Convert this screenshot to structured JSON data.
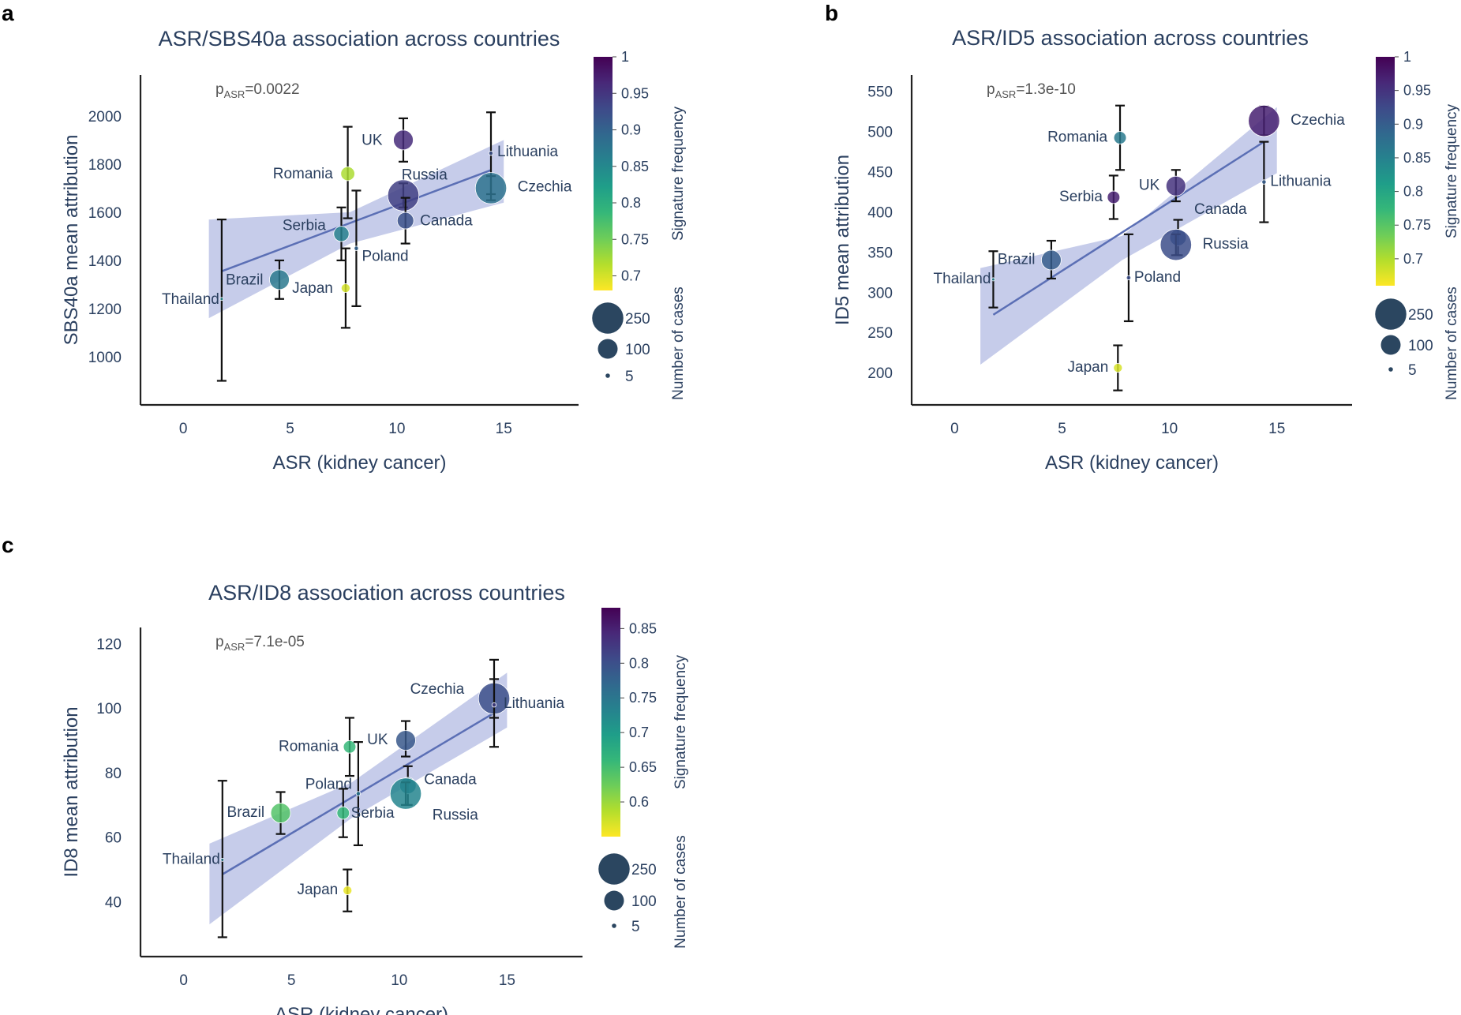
{
  "chart_data": [
    {
      "panel": "a",
      "type": "scatter",
      "title": "ASR/SBS40a association across countries",
      "xlabel": "ASR (kidney cancer)",
      "ylabel": "SBS40a mean attribution",
      "p_prefix": "p",
      "p_sub": "ASR",
      "p_value": "=0.0022",
      "xlim": [
        -2,
        18.5
      ],
      "ylim": [
        800,
        2170
      ],
      "xticks": [
        0,
        5,
        10,
        15
      ],
      "yticks": [
        1000,
        1200,
        1400,
        1600,
        1800,
        2000
      ],
      "points": [
        {
          "label": "UK",
          "x": 10.3,
          "y": 1900,
          "err": [
            1810,
            1990
          ],
          "n": 100,
          "freq": 0.96
        },
        {
          "label": "Lithuania",
          "x": 14.4,
          "y": 1845,
          "err": [
            1675,
            2015
          ],
          "n": 5,
          "freq": 0.92
        },
        {
          "label": "Romania",
          "x": 7.7,
          "y": 1760,
          "err": [
            1575,
            1955
          ],
          "n": 50,
          "freq": 0.72
        },
        {
          "label": "Russia",
          "x": 10.3,
          "y": 1670,
          "err": [
            1620,
            1720
          ],
          "n": 250,
          "freq": 0.94
        },
        {
          "label": "Czechia",
          "x": 14.4,
          "y": 1700,
          "err": [
            1650,
            1750
          ],
          "n": 250,
          "freq": 0.88
        },
        {
          "label": "Serbia",
          "x": 7.4,
          "y": 1510,
          "err": [
            1400,
            1620
          ],
          "n": 60,
          "freq": 0.86
        },
        {
          "label": "Canada",
          "x": 10.4,
          "y": 1565,
          "err": [
            1470,
            1660
          ],
          "n": 70,
          "freq": 0.92
        },
        {
          "label": "Poland",
          "x": 8.1,
          "y": 1450,
          "err": [
            1210,
            1690
          ],
          "n": 5,
          "freq": 0.9
        },
        {
          "label": "Brazil",
          "x": 4.5,
          "y": 1320,
          "err": [
            1240,
            1400
          ],
          "n": 100,
          "freq": 0.87
        },
        {
          "label": "Japan",
          "x": 7.6,
          "y": 1285,
          "err": [
            1120,
            1450
          ],
          "n": 20,
          "freq": 0.7
        },
        {
          "label": "Thailand",
          "x": 1.8,
          "y": 1240,
          "err": [
            900,
            1570
          ],
          "n": 2,
          "freq": 0.85
        }
      ],
      "fit": {
        "x0": 1.8,
        "y0": 1355,
        "x1": 14.4,
        "y1": 1775
      },
      "ci_upper": [
        [
          1.2,
          1570
        ],
        [
          7.8,
          1600
        ],
        [
          15.0,
          1900
        ]
      ],
      "ci_lower": [
        [
          1.2,
          1160
        ],
        [
          7.8,
          1470
        ],
        [
          15.0,
          1640
        ]
      ],
      "colorbar_label": "Signature frequency",
      "colorbar_range": [
        0.68,
        1.0
      ],
      "colorbar_ticks": [
        0.7,
        0.75,
        0.8,
        0.85,
        0.9,
        0.95,
        1
      ],
      "size_legend_label": "Number of cases",
      "size_legend": [
        250,
        100,
        5
      ]
    },
    {
      "panel": "b",
      "type": "scatter",
      "title": "ASR/ID5 association across countries",
      "xlabel": "ASR (kidney cancer)",
      "ylabel": "ID5 mean attribution",
      "p_prefix": "p",
      "p_sub": "ASR",
      "p_value": "=1.3e-10",
      "xlim": [
        -2,
        18.5
      ],
      "ylim": [
        160,
        570
      ],
      "xticks": [
        0,
        5,
        10,
        15
      ],
      "yticks": [
        200,
        250,
        300,
        350,
        400,
        450,
        500,
        550
      ],
      "points": [
        {
          "label": "Czechia",
          "x": 14.4,
          "y": 513,
          "err": [
            495,
            531
          ],
          "n": 250,
          "freq": 0.97
        },
        {
          "label": "Romania",
          "x": 7.7,
          "y": 492,
          "err": [
            452,
            532
          ],
          "n": 40,
          "freq": 0.86
        },
        {
          "label": "Lithuania",
          "x": 14.4,
          "y": 437,
          "err": [
            387,
            487
          ],
          "n": 5,
          "freq": 0.9
        },
        {
          "label": "UK",
          "x": 10.3,
          "y": 432,
          "err": [
            413,
            452
          ],
          "n": 100,
          "freq": 0.95
        },
        {
          "label": "Serbia",
          "x": 7.4,
          "y": 418,
          "err": [
            391,
            445
          ],
          "n": 40,
          "freq": 0.97
        },
        {
          "label": "Canada",
          "x": 10.4,
          "y": 368,
          "err": [
            346,
            390
          ],
          "n": 70,
          "freq": 0.9
        },
        {
          "label": "Russia",
          "x": 10.3,
          "y": 359,
          "err": [
            346,
            372
          ],
          "n": 250,
          "freq": 0.92
        },
        {
          "label": "Brazil",
          "x": 4.5,
          "y": 340,
          "err": [
            317,
            364
          ],
          "n": 100,
          "freq": 0.9
        },
        {
          "label": "Thailand",
          "x": 1.8,
          "y": 316,
          "err": [
            281,
            351
          ],
          "n": 2,
          "freq": 0.85
        },
        {
          "label": "Poland",
          "x": 8.1,
          "y": 318,
          "err": [
            264,
            372
          ],
          "n": 5,
          "freq": 0.92
        },
        {
          "label": "Japan",
          "x": 7.6,
          "y": 206,
          "err": [
            178,
            234
          ],
          "n": 20,
          "freq": 0.68
        }
      ],
      "fit": {
        "x0": 1.8,
        "y0": 272,
        "x1": 14.4,
        "y1": 487
      },
      "ci_upper": [
        [
          1.2,
          330
        ],
        [
          7.8,
          370
        ],
        [
          15.0,
          530
        ]
      ],
      "ci_lower": [
        [
          1.2,
          210
        ],
        [
          7.8,
          340
        ],
        [
          15.0,
          448
        ]
      ],
      "colorbar_label": "Signature frequency",
      "colorbar_range": [
        0.66,
        1.0
      ],
      "colorbar_ticks": [
        0.7,
        0.75,
        0.8,
        0.85,
        0.9,
        0.95,
        1
      ],
      "size_legend_label": "Number of cases",
      "size_legend": [
        250,
        100,
        5
      ]
    },
    {
      "panel": "c",
      "type": "scatter",
      "title": "ASR/ID8 association across countries",
      "xlabel": "ASR (kidney cancer)",
      "ylabel": "ID8 mean attribution",
      "p_prefix": "p",
      "p_sub": "ASR",
      "p_value": "=7.1e-05",
      "xlim": [
        -2,
        18.5
      ],
      "ylim": [
        23,
        125
      ],
      "xticks": [
        0,
        5,
        10,
        15
      ],
      "yticks": [
        40,
        60,
        80,
        100,
        120
      ],
      "points": [
        {
          "label": "Czechia",
          "x": 14.4,
          "y": 103,
          "err": [
            97,
            109
          ],
          "n": 250,
          "freq": 0.8
        },
        {
          "label": "Lithuania",
          "x": 14.4,
          "y": 101,
          "err": [
            88,
            115
          ],
          "n": 5,
          "freq": 0.82
        },
        {
          "label": "Romania",
          "x": 7.7,
          "y": 88,
          "err": [
            79,
            97
          ],
          "n": 40,
          "freq": 0.66
        },
        {
          "label": "UK",
          "x": 10.3,
          "y": 90,
          "err": [
            85,
            96
          ],
          "n": 100,
          "freq": 0.79
        },
        {
          "label": "Canada",
          "x": 10.4,
          "y": 76,
          "err": [
            70,
            82
          ],
          "n": 70,
          "freq": 0.74
        },
        {
          "label": "Russia",
          "x": 10.3,
          "y": 73.5,
          "err": [
            70,
            77
          ],
          "n": 250,
          "freq": 0.73
        },
        {
          "label": "Poland",
          "x": 8.1,
          "y": 73.5,
          "err": [
            57.5,
            89.5
          ],
          "n": 5,
          "freq": 0.75
        },
        {
          "label": "Serbia",
          "x": 7.4,
          "y": 67.5,
          "err": [
            60,
            75
          ],
          "n": 40,
          "freq": 0.66
        },
        {
          "label": "Brazil",
          "x": 4.5,
          "y": 67.5,
          "err": [
            61,
            74
          ],
          "n": 100,
          "freq": 0.64
        },
        {
          "label": "Thailand",
          "x": 1.8,
          "y": 53,
          "err": [
            29,
            77.5
          ],
          "n": 2,
          "freq": 0.75
        },
        {
          "label": "Japan",
          "x": 7.6,
          "y": 43.5,
          "err": [
            37,
            50
          ],
          "n": 20,
          "freq": 0.56
        }
      ],
      "fit": {
        "x0": 1.8,
        "y0": 48.5,
        "x1": 14.4,
        "y1": 98.5
      },
      "ci_upper": [
        [
          1.2,
          58
        ],
        [
          7.8,
          77
        ],
        [
          15.0,
          111
        ]
      ],
      "ci_lower": [
        [
          1.2,
          33
        ],
        [
          7.8,
          66
        ],
        [
          15.0,
          94
        ]
      ],
      "colorbar_label": "Signature frequency",
      "colorbar_range": [
        0.55,
        0.88
      ],
      "colorbar_ticks": [
        0.6,
        0.65,
        0.7,
        0.75,
        0.8,
        0.85
      ],
      "size_legend_label": "Number of cases",
      "size_legend": [
        250,
        100,
        5
      ]
    }
  ],
  "colors": {
    "text": "#2a3f5f",
    "fit_line": "#5b6fb5",
    "ci_band": "#bcc3e6",
    "errorbar": "#111111",
    "legend_marker": "#2b4660"
  }
}
